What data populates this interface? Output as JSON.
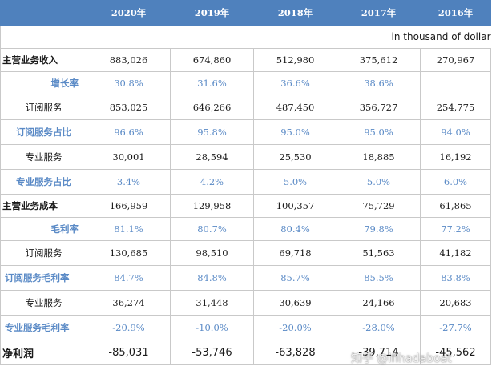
{
  "table": {
    "headers": [
      "",
      "2020年",
      "2019年",
      "2018年",
      "2017年",
      "2016年"
    ],
    "unit": "in thousand of dollar",
    "rows": [
      {
        "label": "主营业务收入",
        "values": [
          "883,026",
          "674,860",
          "512,980",
          "375,612",
          "270,967"
        ]
      },
      {
        "label": "增长率",
        "values": [
          "30.8%",
          "31.6%",
          "36.6%",
          "38.6%",
          ""
        ]
      },
      {
        "label": "订阅服务",
        "values": [
          "853,025",
          "646,266",
          "487,450",
          "356,727",
          "254,775"
        ]
      },
      {
        "label": "订阅服务占比",
        "values": [
          "96.6%",
          "95.8%",
          "95.0%",
          "95.0%",
          "94.0%"
        ]
      },
      {
        "label": "专业服务",
        "values": [
          "30,001",
          "28,594",
          "25,530",
          "18,885",
          "16,192"
        ]
      },
      {
        "label": "专业服务占比",
        "values": [
          "3.4%",
          "4.2%",
          "5.0%",
          "5.0%",
          "6.0%"
        ]
      },
      {
        "label": "主营业务成本",
        "values": [
          "166,959",
          "129,958",
          "100,357",
          "75,729",
          "61,865"
        ]
      },
      {
        "label": "毛利率",
        "values": [
          "81.1%",
          "80.7%",
          "80.4%",
          "79.8%",
          "77.2%"
        ]
      },
      {
        "label": "订阅服务",
        "values": [
          "130,685",
          "98,510",
          "69,718",
          "51,563",
          "41,182"
        ]
      },
      {
        "label": "订阅服务毛利率",
        "values": [
          "84.7%",
          "84.8%",
          "85.7%",
          "85.5%",
          "83.8%"
        ]
      },
      {
        "label": "专业服务",
        "values": [
          "36,274",
          "31,448",
          "30,639",
          "24,166",
          "20,683"
        ]
      },
      {
        "label": "专业服务毛利率",
        "values": [
          "-20.9%",
          "-10.0%",
          "-20.0%",
          "-28.0%",
          "-27.7%"
        ]
      },
      {
        "label": "净利润",
        "values": [
          "-85,031",
          "-53,746",
          "-63,828",
          "-39,714",
          "-45,562"
        ]
      }
    ]
  },
  "watermark": "知乎 @ifihadaboat",
  "colors": {
    "header_bg": "#4f81bd",
    "header_text": "#ffffff",
    "ratio_text": "#5a8ac6",
    "border": "#c9c9c9"
  }
}
